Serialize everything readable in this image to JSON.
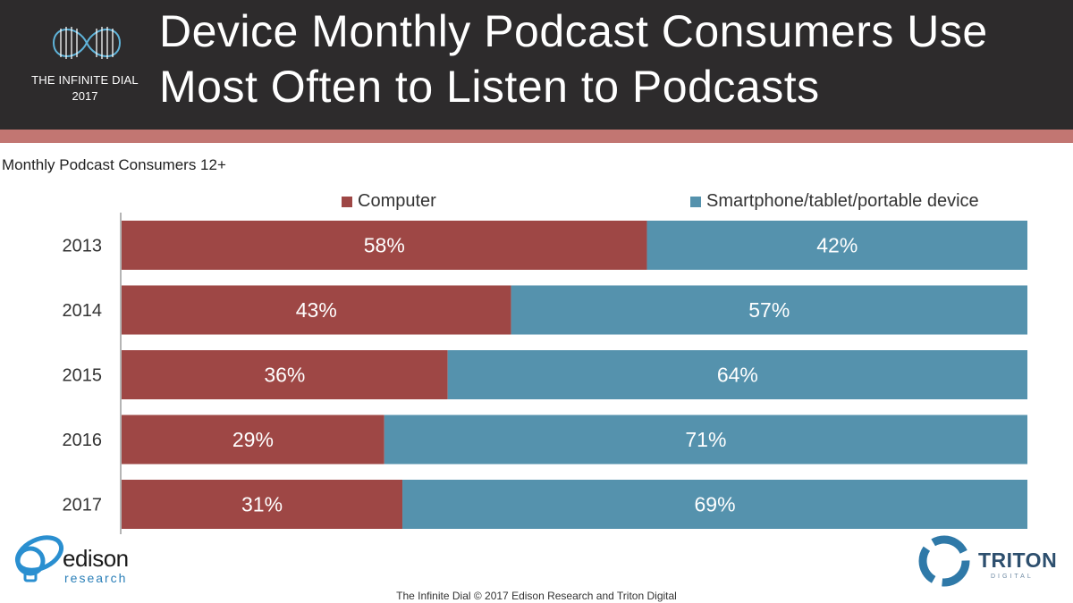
{
  "header": {
    "title_line1": "Device Monthly Podcast Consumers Use",
    "title_line2": "Most Often to Listen to Podcasts",
    "logo_line1": "THE INFINITE DIAL",
    "logo_line2": "2017"
  },
  "subtitle": "Monthly Podcast Consumers 12+",
  "footer": {
    "text": "The Infinite Dial   © 2017 Edison Research and Triton Digital",
    "edison_name": "edison",
    "edison_sub": "research",
    "triton_name": "TRITON",
    "triton_sub": "DIGITAL"
  },
  "colors": {
    "computer": "#9e4745",
    "smartphone": "#5592ad",
    "header_bg": "#2d2b2c",
    "stripe": "#c27672"
  },
  "chart_data": {
    "type": "bar",
    "orientation": "horizontal",
    "stacked": true,
    "title": "Device Monthly Podcast Consumers Use Most Often to Listen to Podcasts",
    "subtitle": "Monthly Podcast Consumers 12+",
    "categories": [
      "2013",
      "2014",
      "2015",
      "2016",
      "2017"
    ],
    "series": [
      {
        "name": "Computer",
        "values": [
          58,
          43,
          36,
          29,
          31
        ],
        "labels": [
          "58%",
          "43%",
          "36%",
          "29%",
          "31%"
        ]
      },
      {
        "name": "Smartphone/tablet/portable device",
        "values": [
          42,
          57,
          64,
          71,
          69
        ],
        "labels": [
          "42%",
          "57%",
          "64%",
          "71%",
          "69%"
        ]
      }
    ],
    "xlim": [
      0,
      100
    ],
    "grid": false,
    "legend": "top"
  }
}
